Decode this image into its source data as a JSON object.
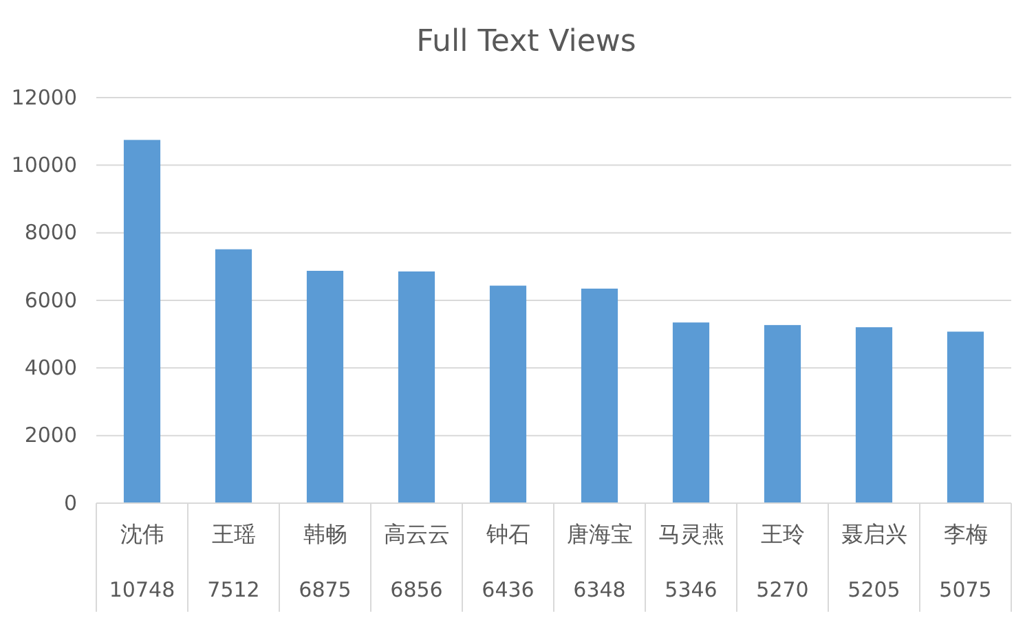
{
  "chart_data": {
    "type": "bar",
    "title": "Full Text Views",
    "categories": [
      "沈伟",
      "王瑶",
      "韩畅",
      "高云云",
      "钟石",
      "唐海宝",
      "马灵燕",
      "王玲",
      "聂启兴",
      "李梅"
    ],
    "values": [
      10748,
      7512,
      6875,
      6856,
      6436,
      6348,
      5346,
      5270,
      5205,
      5075
    ],
    "color": "#5b9bd5",
    "ylim": [
      0,
      12000
    ],
    "yticks": [
      0,
      2000,
      4000,
      6000,
      8000,
      10000,
      12000
    ],
    "grid": "y",
    "data_labels": true
  }
}
